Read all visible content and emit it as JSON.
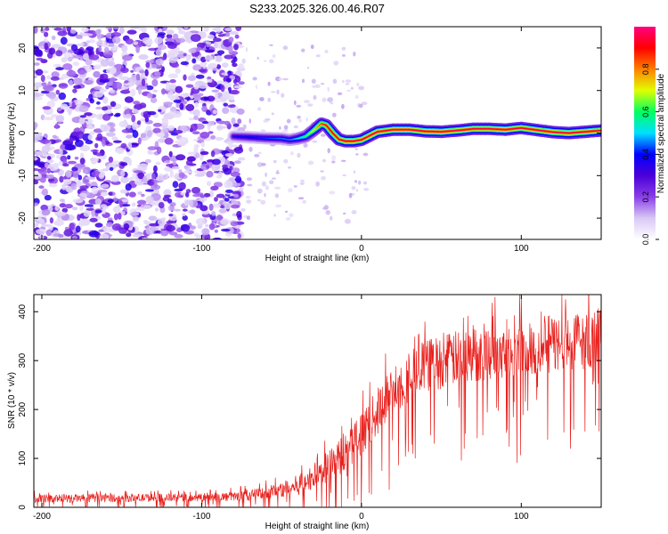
{
  "title": "S233.2025.326.00.46.R07",
  "chart_data": [
    {
      "type": "heatmap",
      "xlabel": "Height of straight line (km)",
      "ylabel": "Frequency (Hz)",
      "xlim": [
        -205,
        150
      ],
      "ylim": [
        -25,
        25
      ],
      "xticks": [
        -200,
        -100,
        0,
        100
      ],
      "xtick_labels": [
        "-200",
        "-100",
        "0",
        "100"
      ],
      "yticks": [
        -20,
        -10,
        0,
        10,
        20
      ],
      "ytick_labels": [
        "-20",
        "-10",
        "0",
        "10",
        "20"
      ],
      "colorbar": {
        "label": "Normalized spectral amplitude",
        "range": [
          0,
          1
        ],
        "ticks": [
          0,
          0.2,
          0.4,
          0.6,
          0.8
        ],
        "tick_labels": [
          "0.0",
          "0.2",
          "0.4",
          "0.6",
          "0.8"
        ],
        "colors": [
          "#ffffff",
          "#d8c8f5",
          "#8a3ee8",
          "#4b00d8",
          "#0000ff",
          "#00e0ff",
          "#00ff60",
          "#e0ff00",
          "#ff8000",
          "#ff0000",
          "#ff0080"
        ]
      },
      "noise_region_x": [
        -205,
        -75
      ],
      "signal_trace": {
        "x": [
          -80,
          -70,
          -60,
          -50,
          -45,
          -40,
          -35,
          -30,
          -25,
          -22,
          -18,
          -14,
          -10,
          -5,
          0,
          10,
          20,
          30,
          40,
          50,
          60,
          70,
          80,
          90,
          100,
          110,
          120,
          130,
          140,
          150
        ],
        "freq": [
          -0.8,
          -1.0,
          -1.2,
          -1.3,
          -1.6,
          -1.3,
          -0.8,
          0.6,
          2.2,
          1.8,
          0.0,
          -1.5,
          -1.9,
          -1.9,
          -1.6,
          0.3,
          0.8,
          0.8,
          0.4,
          0.3,
          0.6,
          1.0,
          1.0,
          0.8,
          1.2,
          0.7,
          0.2,
          0.0,
          0.3,
          0.6
        ],
        "amplitude": [
          0.35,
          0.4,
          0.42,
          0.45,
          0.45,
          0.5,
          0.6,
          0.7,
          0.85,
          0.9,
          0.9,
          0.92,
          0.95,
          0.95,
          0.95,
          0.95,
          0.95,
          0.95,
          0.95,
          0.95,
          0.95,
          0.95,
          0.95,
          0.95,
          0.95,
          0.95,
          0.95,
          0.95,
          0.95,
          0.95
        ]
      }
    },
    {
      "type": "line",
      "xlabel": "Height of straight line (km)",
      "ylabel": "SNR (10 * v/v)",
      "xlim": [
        -205,
        150
      ],
      "ylim": [
        0,
        435
      ],
      "xticks": [
        -200,
        -100,
        0,
        100
      ],
      "xtick_labels": [
        "-200",
        "-100",
        "0",
        "100"
      ],
      "yticks": [
        0,
        100,
        200,
        300,
        400
      ],
      "ytick_labels": [
        "0",
        "100",
        "200",
        "300",
        "400"
      ],
      "series": [
        {
          "name": "SNR",
          "color": "#e8201c",
          "envelope": {
            "x": [
              -205,
              -100,
              -80,
              -70,
              -60,
              -50,
              -40,
              -30,
              -20,
              -10,
              0,
              10,
              20,
              30,
              40,
              60,
              80,
              100,
              120,
              150
            ],
            "base": [
              18,
              20,
              22,
              25,
              30,
              36,
              45,
              62,
              85,
              115,
              150,
              195,
              240,
              270,
              290,
              305,
              318,
              325,
              335,
              345
            ],
            "spread": [
              14,
              14,
              16,
              18,
              22,
              30,
              35,
              45,
              55,
              65,
              70,
              80,
              85,
              90,
              90,
              95,
              95,
              100,
              100,
              100
            ]
          }
        }
      ]
    }
  ]
}
